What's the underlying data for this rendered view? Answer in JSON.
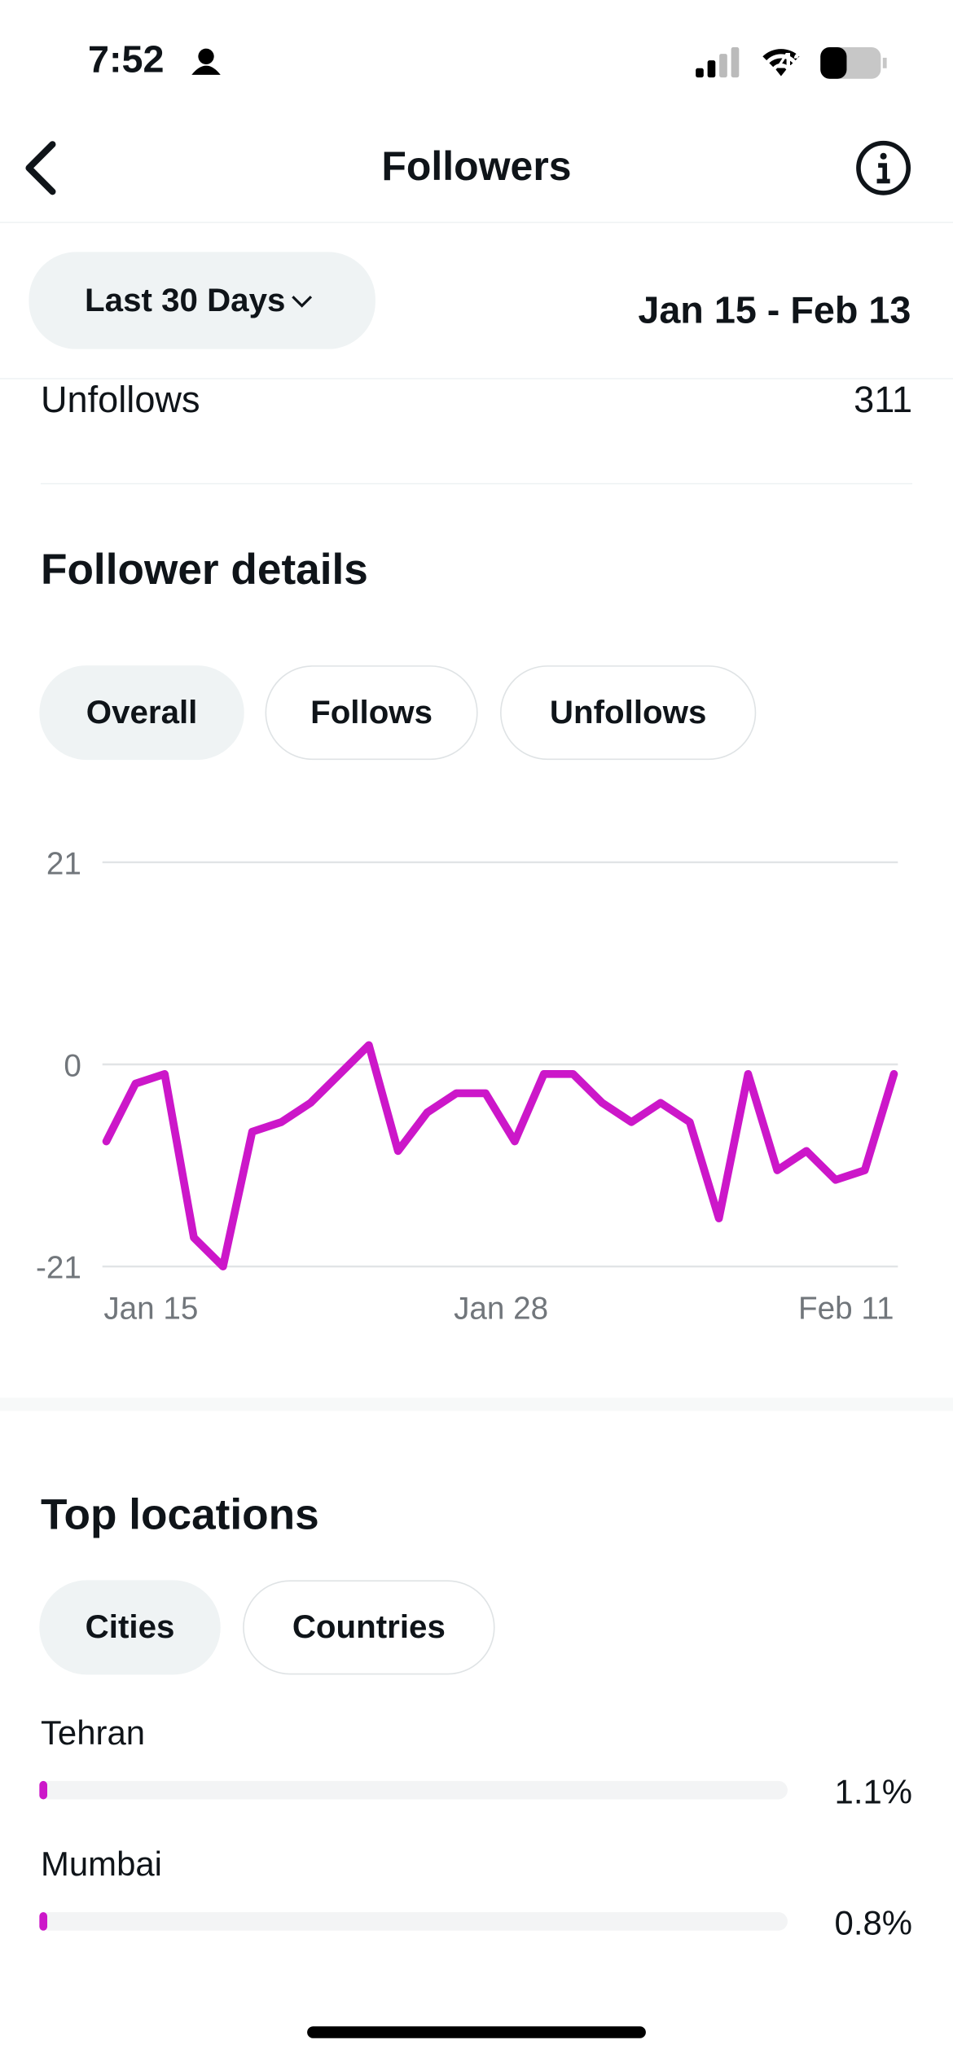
{
  "status_bar": {
    "time": "7:52",
    "battery": "42"
  },
  "header": {
    "title": "Followers"
  },
  "filter": {
    "range_button": "Last 30 Days",
    "date_range": "Jan 15 - Feb 13"
  },
  "summary": {
    "label": "Unfollows",
    "value": "311"
  },
  "follower_details": {
    "title": "Follower details",
    "tabs": [
      "Overall",
      "Follows",
      "Unfollows"
    ]
  },
  "chart_data": {
    "type": "line",
    "categories": [
      "Jan 15",
      null,
      null,
      null,
      null,
      null,
      null,
      null,
      null,
      null,
      null,
      null,
      "Jan 28",
      null,
      null,
      null,
      null,
      null,
      null,
      null,
      null,
      null,
      null,
      null,
      null,
      null,
      null,
      "Feb 11"
    ],
    "series": [
      {
        "name": "Overall",
        "color": "#cc17c9",
        "values": [
          -8,
          -2,
          -1,
          -18,
          -21,
          -7,
          -6,
          -4,
          -1,
          2,
          -9,
          -5,
          -3,
          -3,
          -8,
          -1,
          -1,
          -4,
          -6,
          -4,
          -6,
          -16,
          -1,
          -11,
          -9,
          -12,
          -11,
          -1
        ]
      }
    ],
    "ylim": [
      -21,
      21
    ],
    "yticks": [
      -21,
      0,
      21
    ],
    "grid": true
  },
  "top_locations": {
    "title": "Top locations",
    "tabs": [
      "Cities",
      "Countries"
    ],
    "items": [
      {
        "name": "Tehran",
        "value": 1.1,
        "value_label": "1.1%"
      },
      {
        "name": "Mumbai",
        "value": 0.8,
        "value_label": "0.8%"
      }
    ]
  }
}
